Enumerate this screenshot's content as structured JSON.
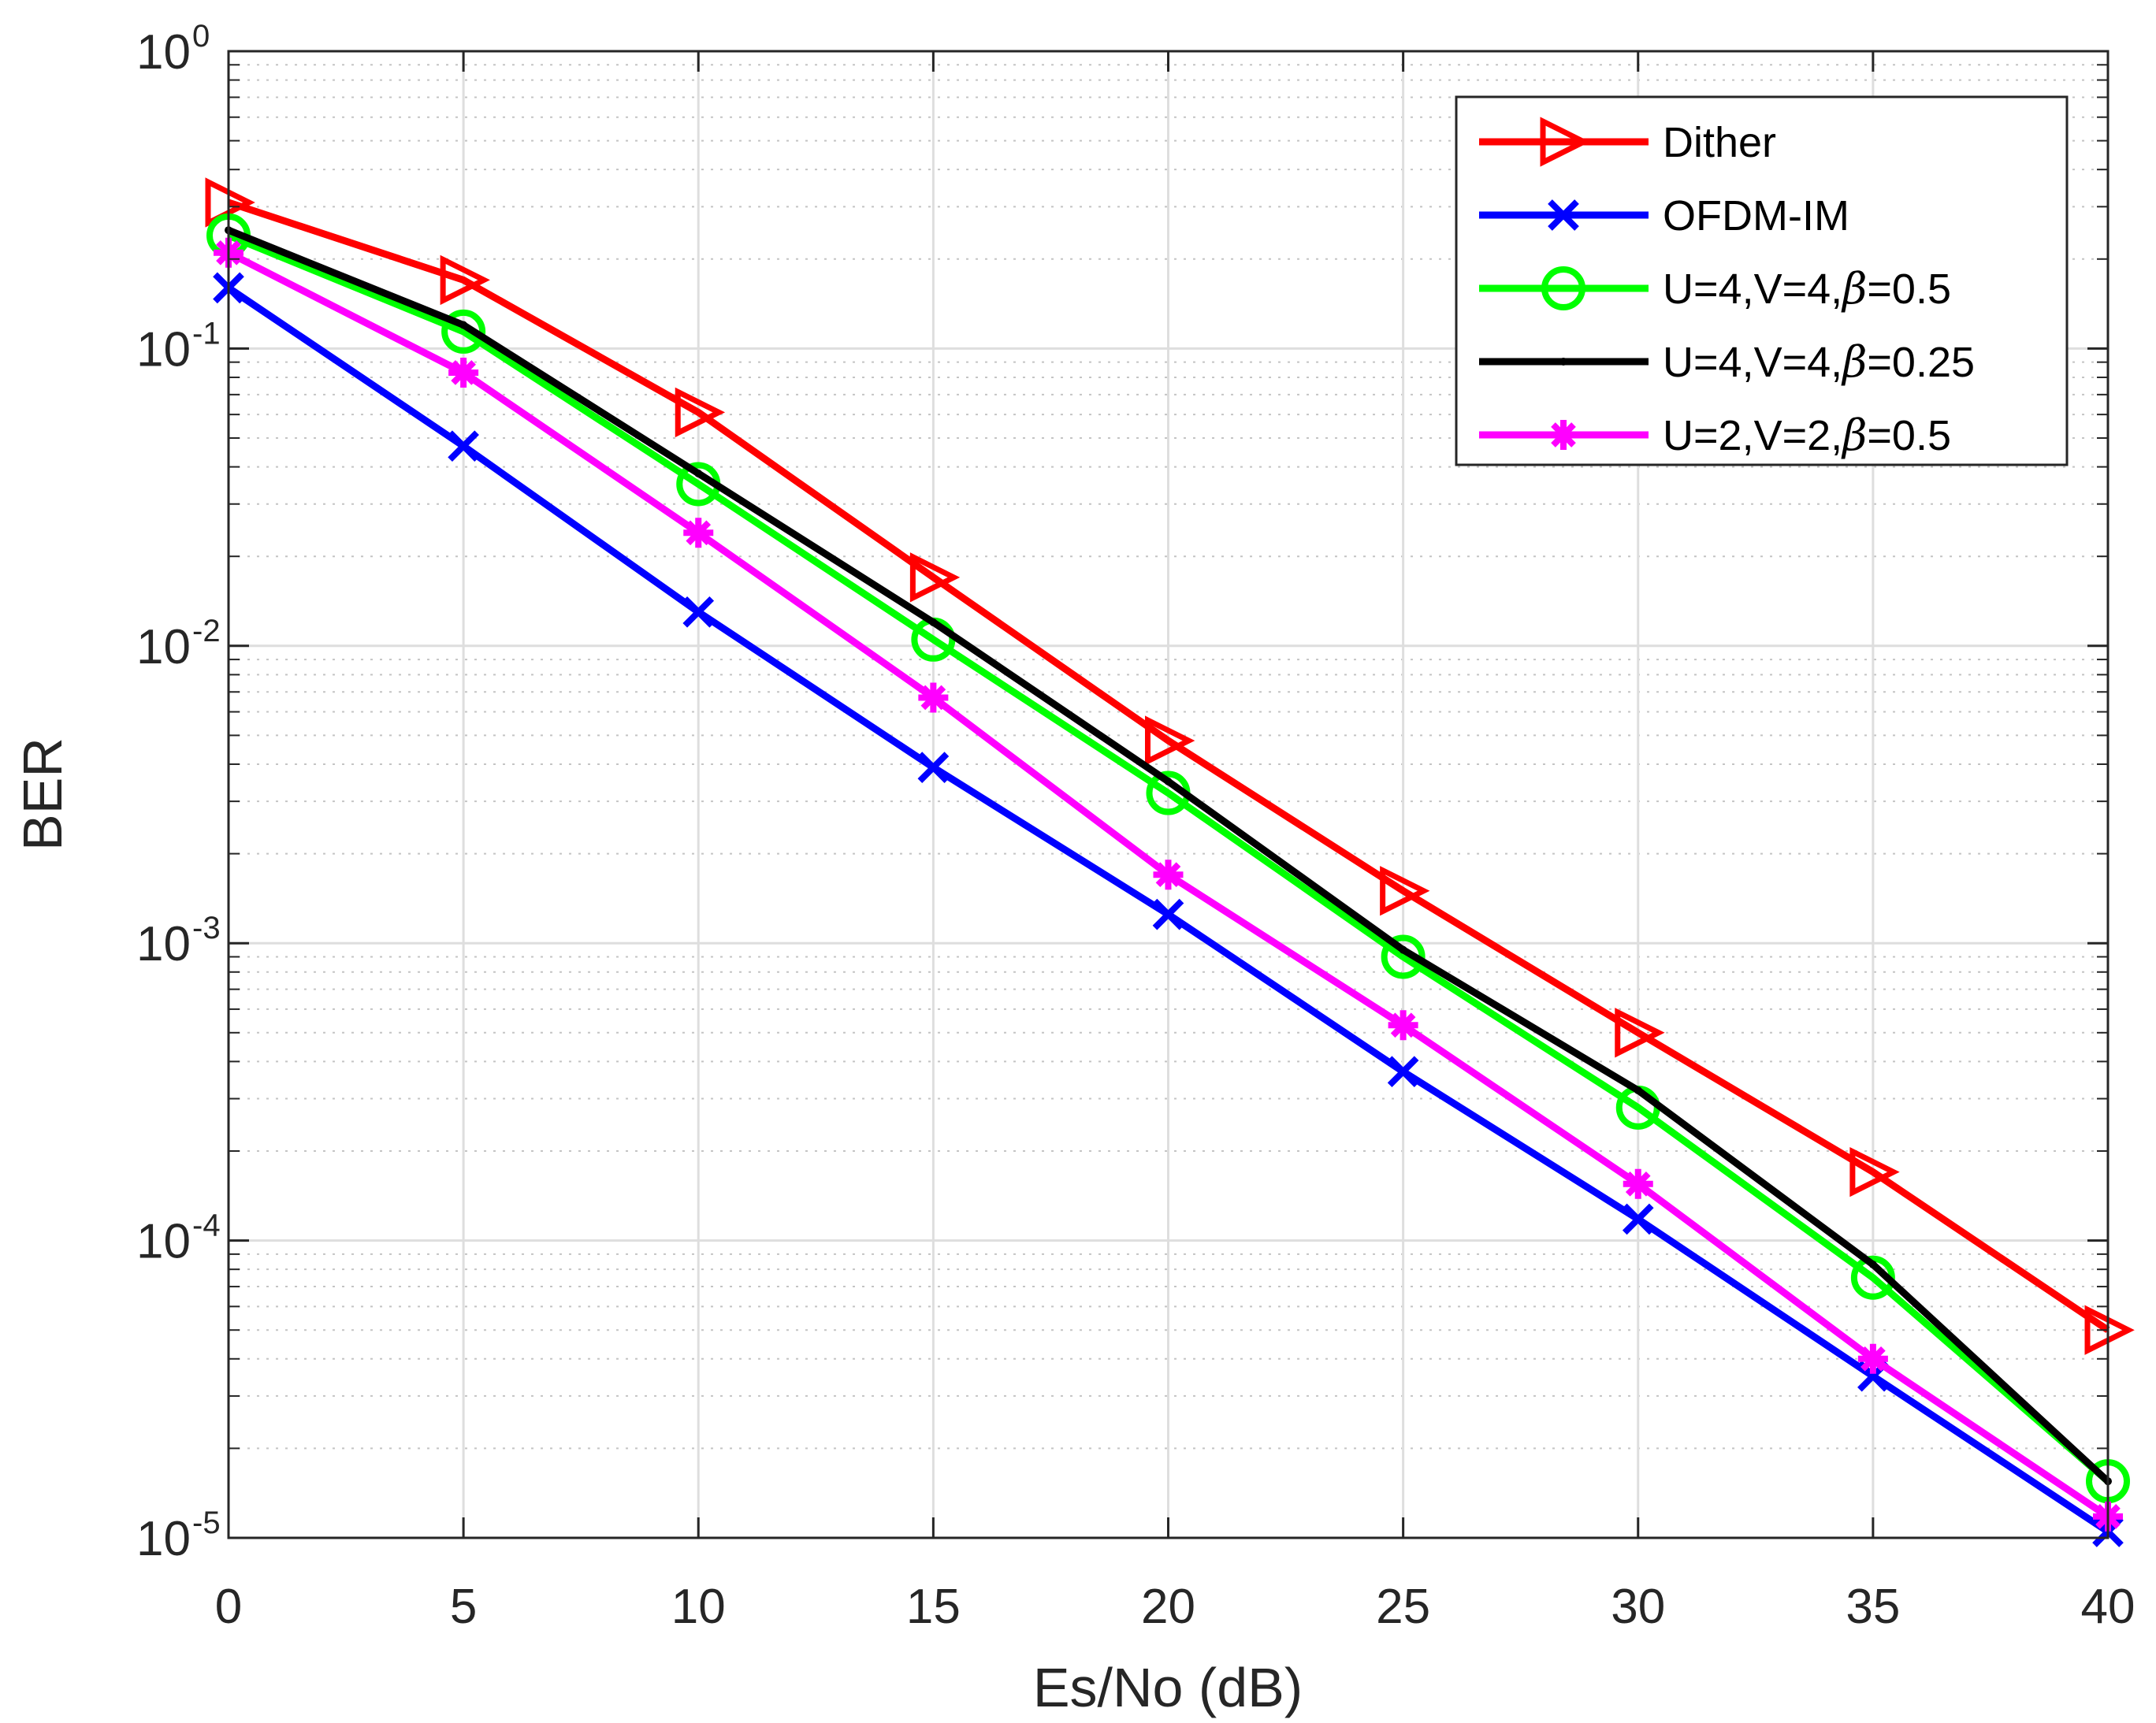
{
  "chart_data": {
    "type": "line",
    "title": "",
    "xlabel": "Es/No (dB)",
    "ylabel": "BER",
    "xlim": [
      0,
      40
    ],
    "ylim": [
      1e-05,
      1
    ],
    "yscale": "log",
    "grid": true,
    "minor_grid": true,
    "legend_position": "top-right",
    "x_ticks": [
      0,
      5,
      10,
      15,
      20,
      25,
      30,
      35,
      40
    ],
    "x_tick_labels": [
      "0",
      "5",
      "10",
      "15",
      "20",
      "25",
      "30",
      "35",
      "40"
    ],
    "y_ticks": [
      {
        "value": 1,
        "base": "10",
        "exp": "0"
      },
      {
        "value": 0.1,
        "base": "10",
        "exp": "-1"
      },
      {
        "value": 0.01,
        "base": "10",
        "exp": "-2"
      },
      {
        "value": 0.001,
        "base": "10",
        "exp": "-3"
      },
      {
        "value": 0.0001,
        "base": "10",
        "exp": "-4"
      },
      {
        "value": 1e-05,
        "base": "10",
        "exp": "-5"
      }
    ],
    "x": [
      0,
      5,
      10,
      15,
      20,
      25,
      30,
      35,
      40
    ],
    "series": [
      {
        "name": "Dither",
        "legend_prefix": "Dither",
        "legend_beta": "",
        "legend_suffix": "",
        "color": "#ff0000",
        "marker": "triangle-right",
        "values": [
          0.31,
          0.17,
          0.061,
          0.017,
          0.0048,
          0.0015,
          0.0005,
          0.00017,
          5e-05
        ]
      },
      {
        "name": "OFDM-IM",
        "legend_prefix": "OFDM-IM",
        "legend_beta": "",
        "legend_suffix": "",
        "color": "#0000ff",
        "marker": "x",
        "values": [
          0.16,
          0.047,
          0.013,
          0.0039,
          0.00125,
          0.00037,
          0.000118,
          3.5e-05,
          1.05e-05
        ]
      },
      {
        "name": "U=4,V=4,β=0.5",
        "legend_prefix": "U=4,V=4,",
        "legend_beta": "β",
        "legend_suffix": "=0.5",
        "color": "#00ff00",
        "marker": "circle",
        "values": [
          0.24,
          0.114,
          0.035,
          0.0105,
          0.0032,
          0.0009,
          0.00028,
          7.5e-05,
          1.55e-05
        ]
      },
      {
        "name": "U=4,V=4,β=0.25",
        "legend_prefix": "U=4,V=4,",
        "legend_beta": "β",
        "legend_suffix": "=0.25",
        "color": "#000000",
        "marker": "point",
        "values": [
          0.25,
          0.12,
          0.038,
          0.012,
          0.0035,
          0.00095,
          0.00032,
          8.3e-05,
          1.55e-05
        ]
      },
      {
        "name": "U=2,V=2,β=0.5",
        "legend_prefix": "U=2,V=2,",
        "legend_beta": "β",
        "legend_suffix": "=0.5",
        "color": "#ff00ff",
        "marker": "asterisk",
        "values": [
          0.21,
          0.083,
          0.024,
          0.0067,
          0.0017,
          0.00053,
          0.000155,
          4e-05,
          1.18e-05
        ]
      }
    ]
  }
}
